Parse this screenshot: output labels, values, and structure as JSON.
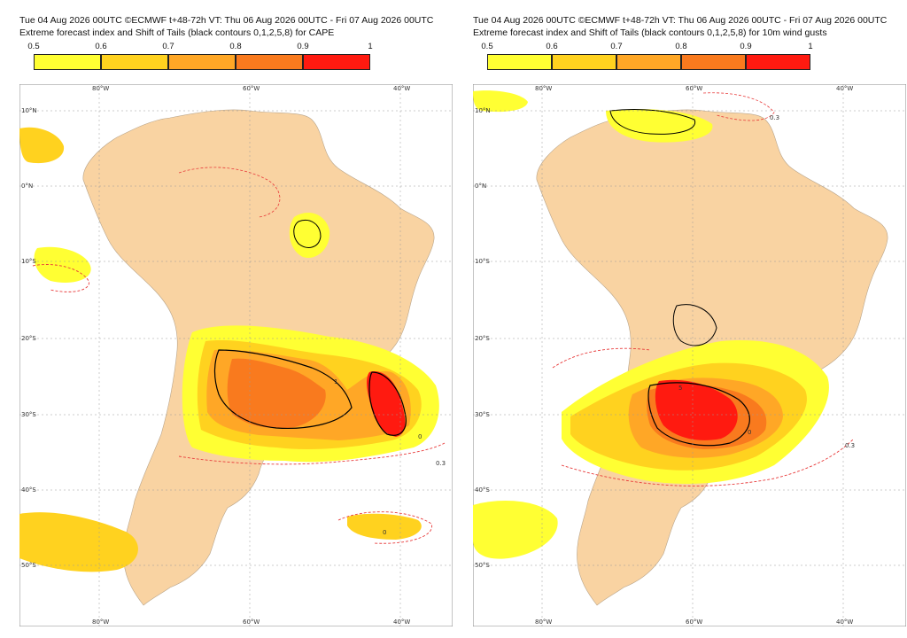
{
  "colorbar": {
    "labels": [
      "0.5",
      "0.6",
      "0.7",
      "0.8",
      "0.9",
      "1"
    ],
    "colors": [
      "#ffff33",
      "#ffd21f",
      "#ffa726",
      "#f97a1e",
      "#ff1a10"
    ]
  },
  "map_colors": {
    "land": "#f9d3a2",
    "ocean": "#ffffff",
    "grid": "#9a9a9a",
    "sot_contour": "#000000",
    "efi_dashed": "#e83a3a",
    "rivers": "#a9a9a9"
  },
  "panels": [
    {
      "header_line1": "Tue 04 Aug 2026 00UTC ©ECMWF t+48-72h  VT: Thu 06 Aug 2026 00UTC - Fri 07 Aug 2026 00UTC",
      "header_line2": "Extreme forecast index and Shift of Tails (black contours 0,1,2,5,8) for CAPE",
      "contour_labels": [
        "0",
        "1",
        "0.3"
      ]
    },
    {
      "header_line1": "Tue 04 Aug 2026 00UTC ©ECMWF t+48-72h  VT: Thu 06 Aug 2026 00UTC - Fri 07 Aug 2026 00UTC",
      "header_line2": "Extreme forecast index and Shift of Tails (black contours 0,1,2,5,8) for 10m wind gusts",
      "contour_labels": [
        "0",
        "5",
        "0.3"
      ]
    }
  ],
  "axes": {
    "lon_top": [
      "80°W",
      "60°W",
      "40°W"
    ],
    "lon_bottom": [
      "80°W",
      "60°W",
      "40°W"
    ],
    "lat": [
      "10°N",
      "0°N",
      "10°S",
      "20°S",
      "30°S",
      "40°S",
      "50°S"
    ]
  }
}
